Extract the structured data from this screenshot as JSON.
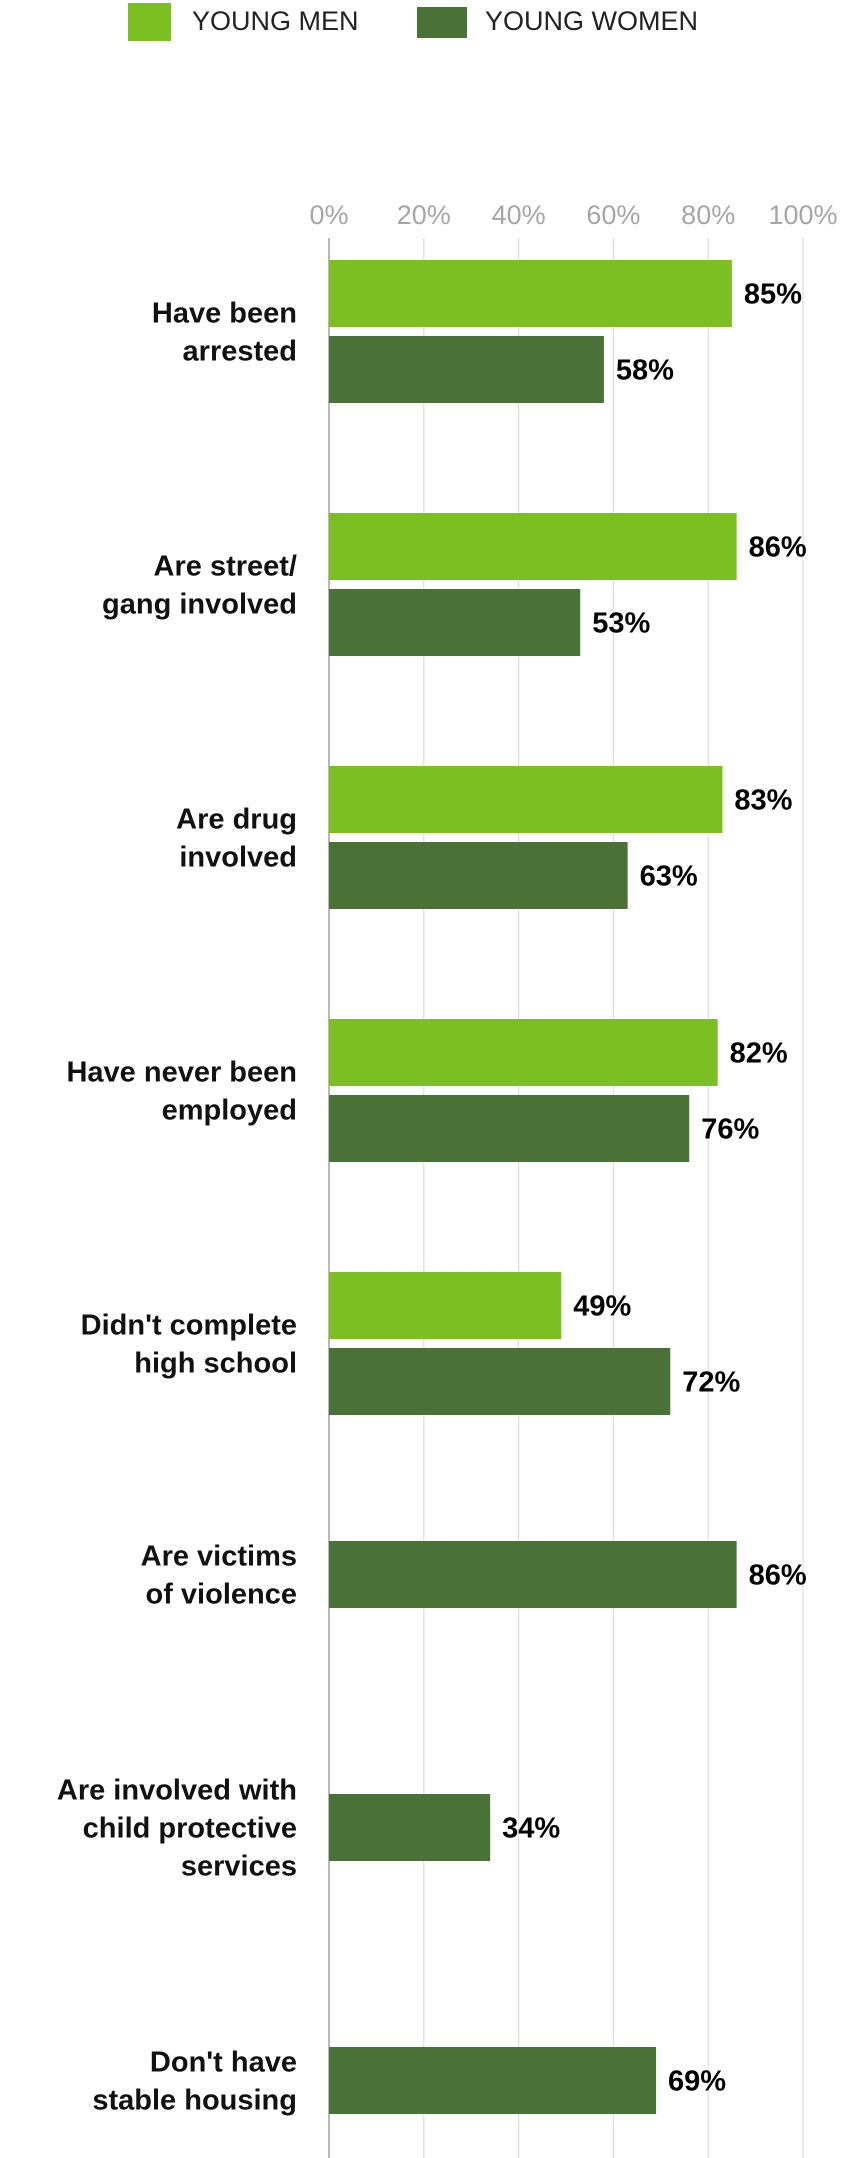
{
  "chart_data": {
    "type": "bar",
    "orientation": "horizontal",
    "legend_position": "top",
    "grid": true,
    "xlim": [
      0,
      100
    ],
    "x_ticks": [
      "0%",
      "20%",
      "40%",
      "60%",
      "80%",
      "100%"
    ],
    "colors": {
      "young_men": "#7bbf22",
      "young_women": "#4a7237"
    },
    "categories": [
      [
        "Have been",
        "arrested"
      ],
      [
        "Are street/",
        "gang involved"
      ],
      [
        "Are drug",
        "involved"
      ],
      [
        "Have never been",
        "employed"
      ],
      [
        "Didn't complete",
        "high school"
      ],
      [
        "Are victims",
        "of violence"
      ],
      [
        "Are involved with",
        "child protective",
        "services"
      ],
      [
        "Don't have",
        "stable housing"
      ]
    ],
    "series": [
      {
        "name": "YOUNG MEN",
        "values": [
          85,
          86,
          83,
          82,
          49,
          null,
          null,
          null
        ]
      },
      {
        "name": "YOUNG WOMEN",
        "values": [
          58,
          53,
          63,
          76,
          72,
          86,
          34,
          69
        ]
      }
    ],
    "value_suffix": "%"
  }
}
